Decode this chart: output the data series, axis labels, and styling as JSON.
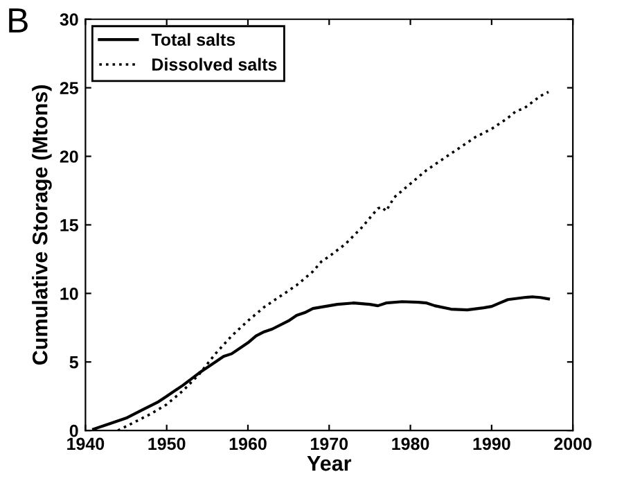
{
  "chart_data": {
    "type": "line",
    "xlabel": "Year",
    "ylabel": "Cumulative Storage (Mtons)",
    "annotations": [
      "B"
    ],
    "xlim": [
      1940,
      2000
    ],
    "xticks": [
      1940,
      1950,
      1960,
      1970,
      1980,
      1990,
      2000
    ],
    "ylim": [
      0,
      30
    ],
    "yticks": [
      0,
      5,
      10,
      15,
      20,
      25,
      30
    ],
    "grid": false,
    "legend": "top left",
    "series": [
      {
        "name": "Total salts",
        "color": "#000000",
        "line_style": "solid",
        "x": [
          1941,
          1943,
          1945,
          1947,
          1949,
          1950,
          1952,
          1954,
          1956,
          1957,
          1958,
          1960,
          1961,
          1962,
          1963,
          1965,
          1966,
          1967,
          1968,
          1970,
          1971,
          1973,
          1975,
          1976,
          1977,
          1979,
          1981,
          1982,
          1983,
          1985,
          1987,
          1989,
          1990,
          1991,
          1992,
          1994,
          1995,
          1996,
          1997
        ],
        "values": [
          0.1,
          0.5,
          0.9,
          1.5,
          2.1,
          2.5,
          3.3,
          4.2,
          5.0,
          5.4,
          5.6,
          6.4,
          6.9,
          7.2,
          7.4,
          8.0,
          8.4,
          8.6,
          8.9,
          9.1,
          9.2,
          9.3,
          9.2,
          9.1,
          9.3,
          9.4,
          9.35,
          9.3,
          9.1,
          8.85,
          8.8,
          8.95,
          9.05,
          9.3,
          9.55,
          9.7,
          9.75,
          9.7,
          9.6
        ]
      },
      {
        "name": "Dissolved salts",
        "color": "#000000",
        "line_style": "dotted",
        "x": [
          1944,
          1946,
          1948,
          1950,
          1952,
          1954,
          1956,
          1958,
          1960,
          1962,
          1964,
          1966,
          1968,
          1969,
          1970,
          1972,
          1974,
          1976,
          1976.5,
          1977,
          1978,
          1980,
          1982,
          1984,
          1986,
          1988,
          1990,
          1992,
          1993,
          1994,
          1996,
          1997
        ],
        "values": [
          0,
          0.6,
          1.2,
          1.9,
          2.9,
          4.1,
          5.6,
          6.9,
          8.0,
          9.0,
          9.8,
          10.6,
          11.6,
          12.3,
          12.7,
          13.6,
          14.8,
          16.2,
          16.3,
          16.0,
          17.0,
          18.0,
          19.0,
          19.8,
          20.6,
          21.4,
          22.0,
          22.8,
          23.3,
          23.5,
          24.4,
          24.7
        ]
      }
    ]
  }
}
